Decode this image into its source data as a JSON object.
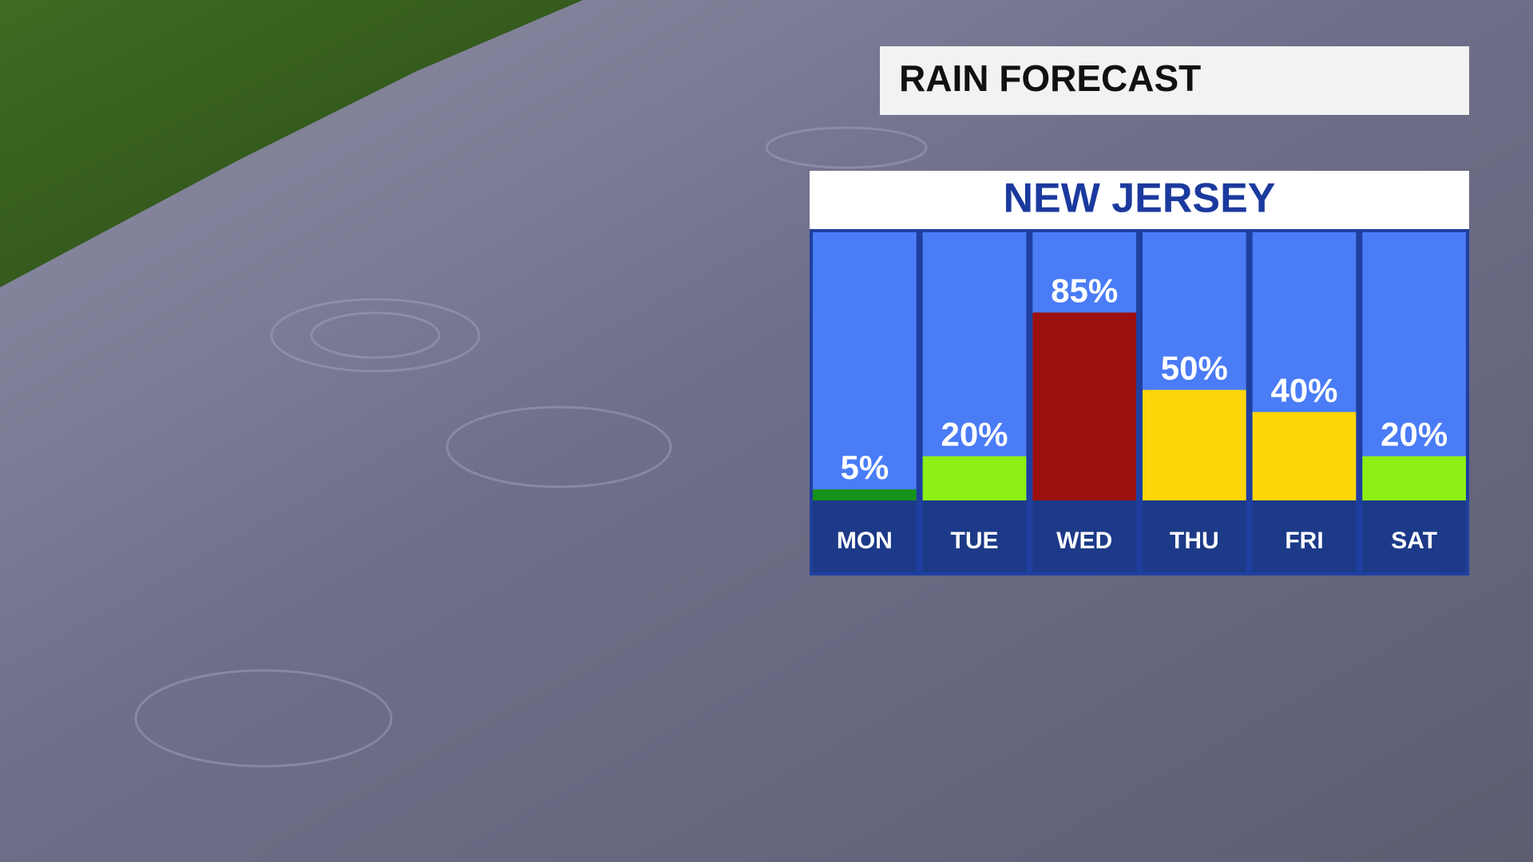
{
  "chart_data": {
    "type": "bar",
    "title": "RAIN FORECAST",
    "subtitle": "NEW JERSEY",
    "categories": [
      "MON",
      "TUE",
      "WED",
      "THU",
      "FRI",
      "SAT"
    ],
    "values": [
      5,
      20,
      85,
      50,
      40,
      20
    ],
    "value_labels": [
      "5%",
      "20%",
      "85%",
      "50%",
      "40%",
      "20%"
    ],
    "colors": [
      "#15931a",
      "#8cf015",
      "#9c0f0f",
      "#ffd60a",
      "#ffd60a",
      "#8cf015"
    ]
  }
}
